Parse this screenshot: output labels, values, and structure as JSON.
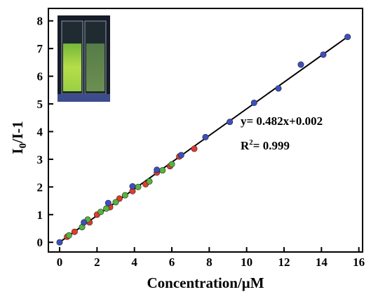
{
  "chart_data": {
    "type": "scatter",
    "xlabel": "Concentration/μM",
    "ylabel_main": "I",
    "ylabel_sub": "0",
    "ylabel_rest": "/I-1",
    "xlim": [
      -0.6,
      16.2
    ],
    "ylim": [
      -0.35,
      8.45
    ],
    "x_ticks": [
      0,
      2,
      4,
      6,
      8,
      10,
      12,
      14,
      16
    ],
    "y_ticks": [
      0,
      1,
      2,
      3,
      4,
      5,
      6,
      7,
      8
    ],
    "grid": false,
    "inset": "photo of two cuvettes under UV light, left one glowing green",
    "colors": {
      "blue": "#3d4fc0",
      "red": "#e23a2c",
      "green": "#55b43c",
      "line": "#000000"
    },
    "series": [
      {
        "color": "blue",
        "points": [
          [
            0,
            0.0
          ],
          [
            1.3,
            0.72
          ],
          [
            2.6,
            1.42
          ],
          [
            3.9,
            2.02
          ],
          [
            5.2,
            2.62
          ],
          [
            6.5,
            3.15
          ],
          [
            7.8,
            3.8
          ],
          [
            9.1,
            4.35
          ],
          [
            10.4,
            5.04
          ],
          [
            11.7,
            5.56
          ],
          [
            12.9,
            6.42
          ],
          [
            14.1,
            6.78
          ],
          [
            15.4,
            7.42
          ]
        ]
      },
      {
        "color": "red",
        "points": [
          [
            0.4,
            0.2
          ],
          [
            0.8,
            0.38
          ],
          [
            1.6,
            0.72
          ],
          [
            2.0,
            1.0
          ],
          [
            2.7,
            1.27
          ],
          [
            3.2,
            1.58
          ],
          [
            3.9,
            1.85
          ],
          [
            4.6,
            2.1
          ],
          [
            5.2,
            2.52
          ],
          [
            5.9,
            2.75
          ],
          [
            6.4,
            3.1
          ],
          [
            7.2,
            3.38
          ]
        ]
      },
      {
        "color": "green",
        "points": [
          [
            0.5,
            0.25
          ],
          [
            1.2,
            0.55
          ],
          [
            1.5,
            0.82
          ],
          [
            2.2,
            1.1
          ],
          [
            2.5,
            1.22
          ],
          [
            3.0,
            1.45
          ],
          [
            3.5,
            1.7
          ],
          [
            4.2,
            2.0
          ],
          [
            4.8,
            2.2
          ],
          [
            5.5,
            2.6
          ],
          [
            6.0,
            2.82
          ]
        ]
      }
    ],
    "fit": {
      "slope": 0.482,
      "intercept": 0.002,
      "x_range": [
        0,
        15.4
      ]
    },
    "annotation": {
      "equation": "y= 0.482x+0.002",
      "r2_main": "R",
      "r2_sup": "2",
      "r2_rest": "= 0.999"
    }
  }
}
